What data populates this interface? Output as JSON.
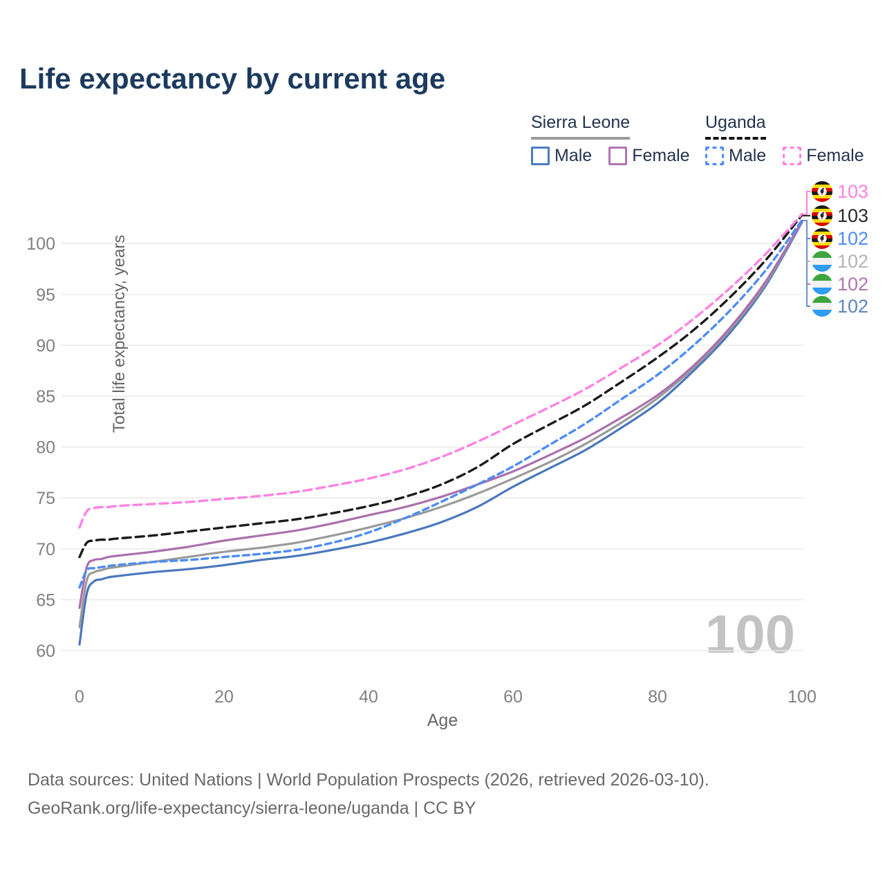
{
  "title": "Life expectancy by current age",
  "legend": {
    "groups": [
      {
        "name": "Sierra Leone",
        "line_style": "solid",
        "line_color": "#9b9b9b",
        "items": [
          {
            "label": "Male",
            "color": "#4a7cc2",
            "dashed": false
          },
          {
            "label": "Female",
            "color": "#b274b2",
            "dashed": false
          }
        ]
      },
      {
        "name": "Uganda",
        "line_style": "dashed",
        "line_color": "#141414",
        "items": [
          {
            "label": "Male",
            "color": "#4d8cf5",
            "dashed": true
          },
          {
            "label": "Female",
            "color": "#fd82e2",
            "dashed": true
          }
        ]
      }
    ]
  },
  "chart_data": {
    "type": "line",
    "title": "Life expectancy by current age",
    "xlabel": "Age",
    "ylabel": "Total life expectancy, years",
    "xlim": [
      0,
      100
    ],
    "ylim": [
      60,
      103.5
    ],
    "x_ticks": [
      0,
      20,
      40,
      60,
      80,
      100
    ],
    "y_ticks": [
      60,
      65,
      70,
      75,
      80,
      85,
      90,
      95,
      100
    ],
    "grid": true,
    "legend_position": "top-right",
    "x": [
      0,
      1,
      2,
      3,
      4,
      5,
      10,
      15,
      20,
      25,
      30,
      35,
      40,
      45,
      50,
      55,
      60,
      65,
      70,
      75,
      80,
      85,
      90,
      95,
      100
    ],
    "series": [
      {
        "name": "Sierra Leone Male",
        "country": "Sierra Leone",
        "sex": "Male",
        "color": "#4a77bd",
        "dashed": false,
        "values": [
          60.6,
          65.6,
          66.8,
          67.0,
          67.2,
          67.3,
          67.7,
          68.0,
          68.4,
          68.9,
          69.3,
          69.9,
          70.6,
          71.5,
          72.6,
          74.1,
          76.1,
          77.9,
          79.7,
          81.9,
          84.3,
          87.5,
          91.2,
          95.9,
          102.1
        ]
      },
      {
        "name": "Sierra Leone",
        "country": "Sierra Leone",
        "sex": "Both",
        "color": "#9a9a9a",
        "dashed": false,
        "values": [
          62.3,
          66.9,
          67.7,
          67.9,
          68.1,
          68.2,
          68.7,
          69.2,
          69.7,
          70.1,
          70.6,
          71.3,
          72.1,
          73.0,
          74.1,
          75.4,
          76.9,
          78.5,
          80.3,
          82.4,
          84.8,
          87.8,
          91.5,
          96.1,
          102.2
        ]
      },
      {
        "name": "Sierra Leone Female",
        "country": "Sierra Leone",
        "sex": "Female",
        "color": "#ab6fae",
        "dashed": false,
        "values": [
          64.2,
          68.2,
          68.9,
          69.0,
          69.2,
          69.3,
          69.7,
          70.2,
          70.8,
          71.3,
          71.8,
          72.5,
          73.3,
          74.1,
          75.1,
          76.3,
          77.6,
          79.2,
          80.9,
          82.9,
          85.1,
          88.0,
          91.7,
          96.3,
          102.2
        ]
      },
      {
        "name": "Uganda Male",
        "country": "Uganda",
        "sex": "Male",
        "color": "#4d8cf5",
        "dashed": true,
        "values": [
          66.2,
          67.9,
          68.1,
          68.2,
          68.3,
          68.4,
          68.7,
          68.9,
          69.2,
          69.5,
          69.9,
          70.6,
          71.6,
          73.0,
          74.6,
          76.3,
          78.1,
          80.2,
          82.3,
          84.7,
          87.1,
          90.0,
          93.4,
          97.4,
          102.3
        ]
      },
      {
        "name": "Uganda",
        "country": "Uganda",
        "sex": "Both",
        "color": "#1b1b1b",
        "dashed": true,
        "values": [
          69.2,
          70.6,
          70.8,
          70.9,
          70.9,
          71.0,
          71.3,
          71.7,
          72.1,
          72.5,
          72.9,
          73.5,
          74.2,
          75.1,
          76.3,
          78.0,
          80.3,
          82.2,
          84.1,
          86.4,
          88.8,
          91.5,
          94.7,
          98.4,
          102.8
        ]
      },
      {
        "name": "Uganda Female",
        "country": "Uganda",
        "sex": "Female",
        "color": "#fd82e2",
        "dashed": true,
        "values": [
          72.1,
          73.7,
          74.0,
          74.1,
          74.1,
          74.2,
          74.4,
          74.6,
          74.9,
          75.2,
          75.6,
          76.2,
          76.9,
          77.8,
          79.0,
          80.5,
          82.2,
          83.9,
          85.7,
          87.8,
          90.0,
          92.6,
          95.6,
          99.0,
          102.9
        ]
      }
    ]
  },
  "end_labels": [
    {
      "value": "103",
      "flag": "uganda",
      "series": "Uganda Female",
      "color": "#fd82e2"
    },
    {
      "value": "103",
      "flag": "uganda",
      "series": "Uganda",
      "color": "#2b2b2b"
    },
    {
      "value": "102",
      "flag": "uganda",
      "series": "Uganda Male",
      "color": "#4d8cf5"
    },
    {
      "value": "102",
      "flag": "sierra-leone",
      "series": "Sierra Leone",
      "color": "#b3b3b3"
    },
    {
      "value": "102",
      "flag": "sierra-leone",
      "series": "Sierra Leone Female",
      "color": "#b274b2"
    },
    {
      "value": "102",
      "flag": "sierra-leone",
      "series": "Sierra Leone Male",
      "color": "#5b84c4"
    }
  ],
  "watermark": "100",
  "axis": {
    "x_title": "Age",
    "y_title": "Total life expectancy, years"
  },
  "footer": {
    "line1": "Data sources: United Nations | World Population Prospects (2026, retrieved 2026-03-10).",
    "line2": "GeoRank.org/life-expectancy/sierra-leone/uganda | CC BY"
  },
  "colors": {
    "title": "#1c3a5e",
    "tick": "#808080",
    "grid": "#eaeaea",
    "watermark": "#c3c3c3"
  }
}
